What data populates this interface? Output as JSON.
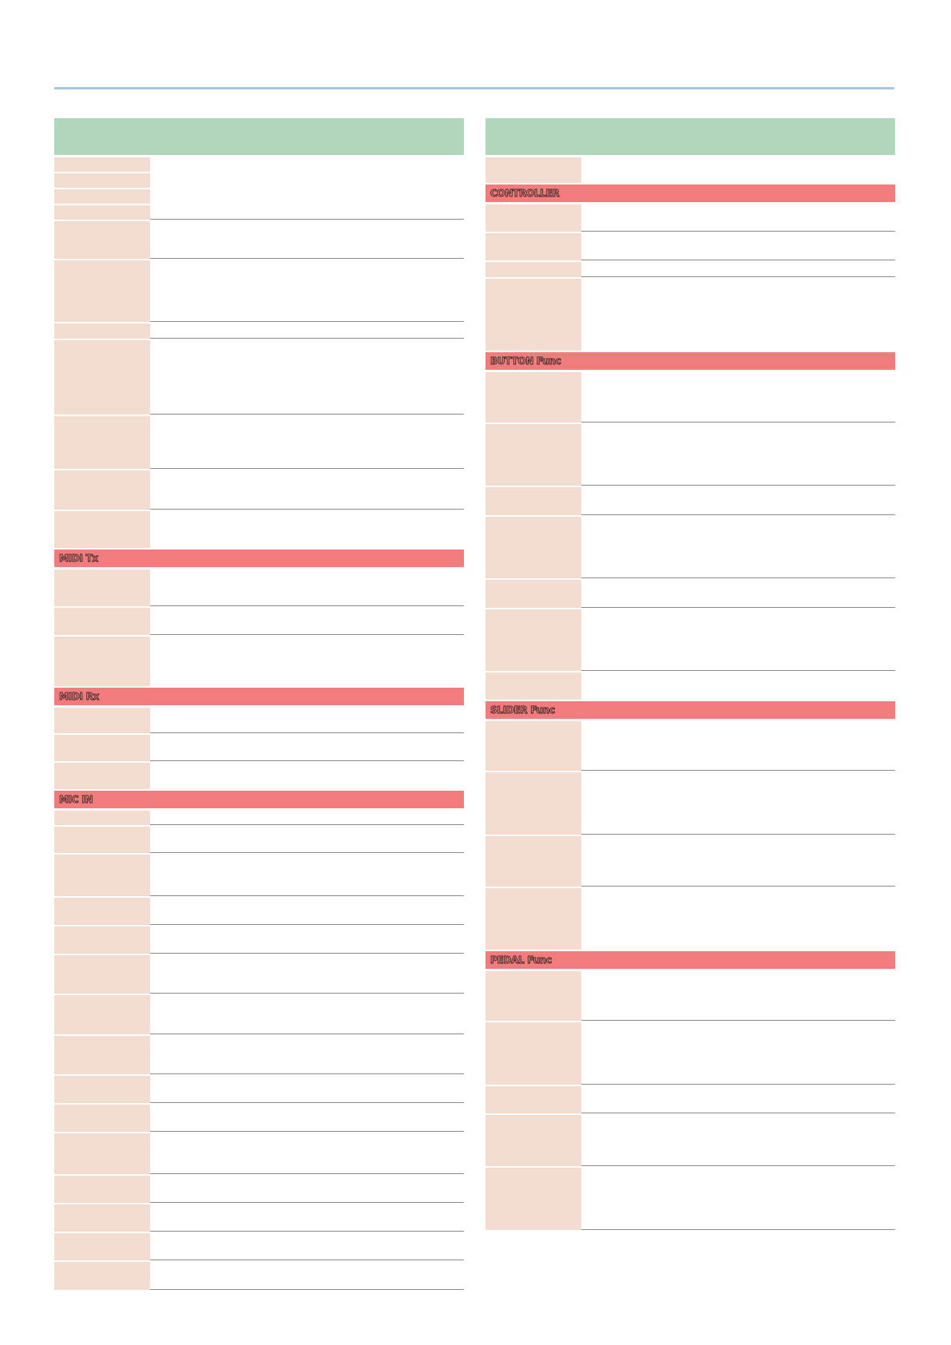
{
  "colors": {
    "header_green": "#b0d6bc",
    "section_red": "#f27b7b",
    "key_cell": "#f3dcd0",
    "top_rule": "#a9c8e0"
  },
  "left_column": {
    "sections": [
      {
        "label": "MIDI Tx"
      },
      {
        "label": "MIDI Rx"
      },
      {
        "label": "MIC IN"
      }
    ]
  },
  "right_column": {
    "sections": [
      {
        "label": "CONTROLLER"
      },
      {
        "label": "BUTTON Func"
      },
      {
        "label": "SLIDER Func"
      },
      {
        "label": "PEDAL Func"
      }
    ]
  }
}
